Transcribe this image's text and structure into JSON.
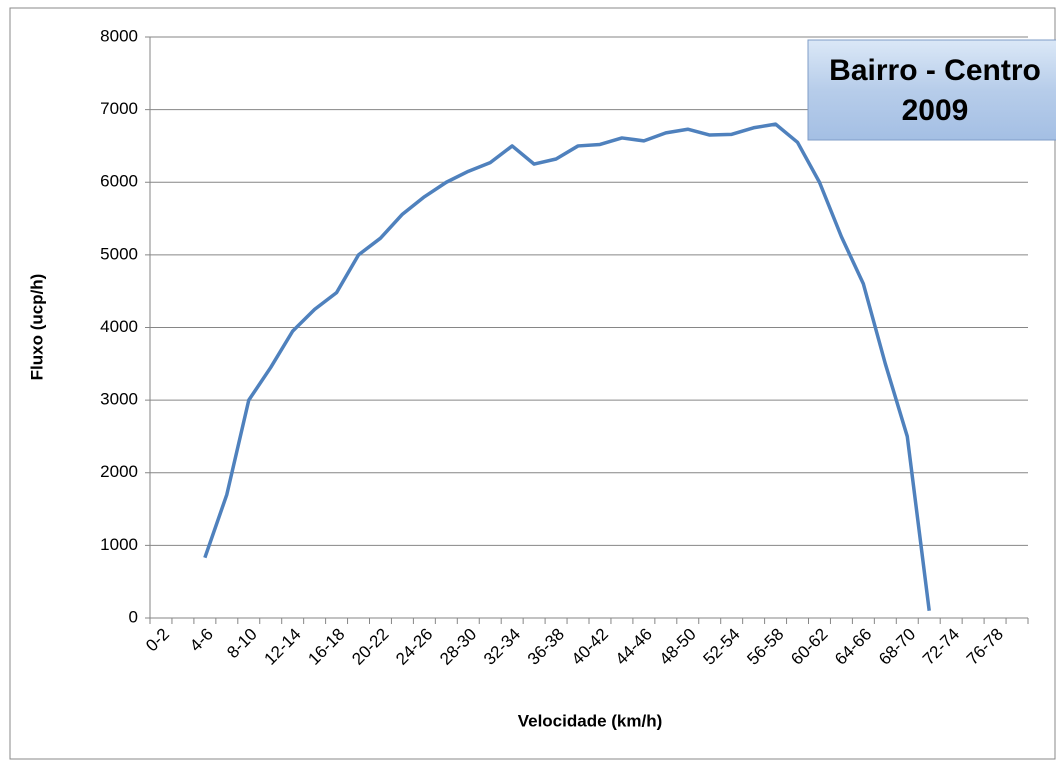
{
  "chart_data": {
    "type": "line",
    "annotation": [
      "Bairro - Centro",
      "2009"
    ],
    "x_label": "Velocidade (km/h)",
    "y_label": "Fluxo (ucp/h)",
    "categories": [
      "0-2",
      null,
      "4-6",
      null,
      "8-10",
      null,
      "12-14",
      null,
      "16-18",
      null,
      "20-22",
      null,
      "24-26",
      null,
      "28-30",
      null,
      "32-34",
      null,
      "36-38",
      null,
      "40-42",
      null,
      "44-46",
      null,
      "48-50",
      null,
      "52-54",
      null,
      "56-58",
      null,
      "60-62",
      null,
      "64-66",
      null,
      "68-70",
      null,
      "72-74",
      null,
      "76-78",
      null
    ],
    "series": [
      {
        "name": "Fluxo",
        "color": "#4f81bd",
        "values": [
          null,
          null,
          830,
          1700,
          3000,
          3450,
          3950,
          4250,
          4480,
          5000,
          5230,
          5560,
          5800,
          6000,
          6150,
          6270,
          6500,
          6250,
          6320,
          6500,
          6520,
          6610,
          6570,
          6680,
          6730,
          6650,
          6660,
          6750,
          6800,
          6550,
          6000,
          5250,
          4600,
          3500,
          2500,
          100,
          null,
          null,
          null,
          null
        ]
      }
    ],
    "ylim": [
      0,
      8000
    ],
    "yticks": [
      0,
      1000,
      2000,
      3000,
      4000,
      5000,
      6000,
      7000,
      8000
    ],
    "grid": true
  }
}
